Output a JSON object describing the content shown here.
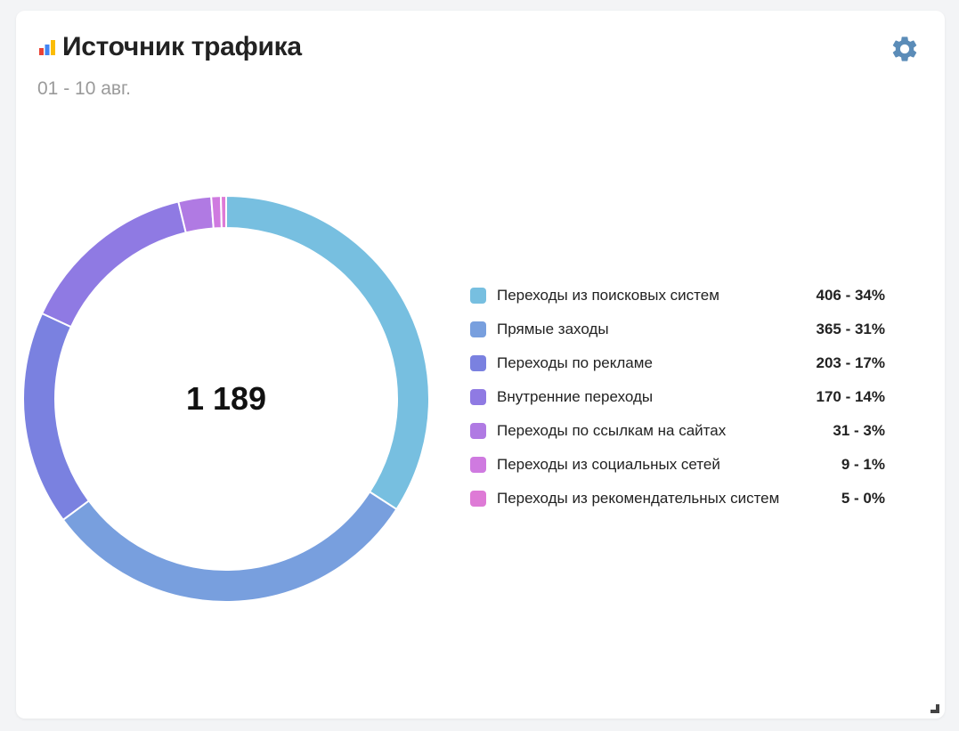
{
  "widget": {
    "title": "Источник трафика",
    "date_range": "01 - 10 авг.",
    "icons": {
      "title": "bar-chart-icon",
      "settings": "gear-icon",
      "resize": "resize-handle-icon"
    },
    "accent_colors": {
      "title_icon": [
        "#ea4335",
        "#4285f4",
        "#fbbc05"
      ],
      "gear": "#5b8cb8"
    }
  },
  "chart_data": {
    "type": "pie",
    "style": "donut",
    "total": "1 189",
    "series": [
      {
        "label": "Переходы из поисковых систем",
        "value": 406,
        "percent": 34,
        "display": "406 - 34%",
        "color": "#77bfe0"
      },
      {
        "label": "Прямые заходы",
        "value": 365,
        "percent": 31,
        "display": "365 - 31%",
        "color": "#789fde"
      },
      {
        "label": "Переходы по рекламе",
        "value": 203,
        "percent": 17,
        "display": "203 - 17%",
        "color": "#7a81e0"
      },
      {
        "label": "Внутренние переходы",
        "value": 170,
        "percent": 14,
        "display": "170 - 14%",
        "color": "#8f7ae3"
      },
      {
        "label": "Переходы по ссылкам на сайтах",
        "value": 31,
        "percent": 3,
        "display": "31 - 3%",
        "color": "#b07ae3"
      },
      {
        "label": "Переходы из социальных сетей",
        "value": 9,
        "percent": 1,
        "display": "9 - 1%",
        "color": "#cf7ae0"
      },
      {
        "label": "Переходы из рекомендательных систем",
        "value": 5,
        "percent": 0,
        "display": "5 - 0%",
        "color": "#de7ad6"
      }
    ],
    "legend_position": "right"
  }
}
